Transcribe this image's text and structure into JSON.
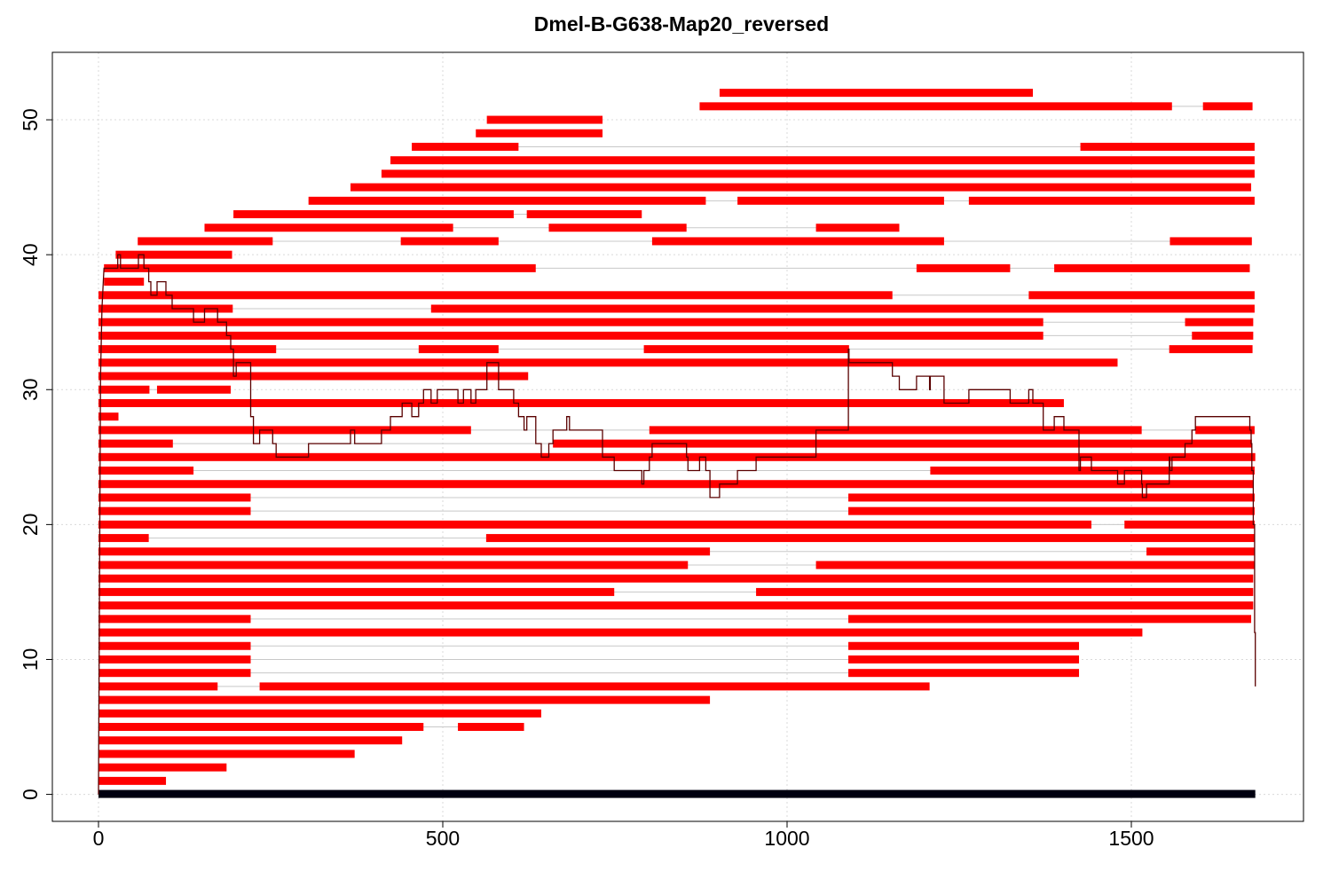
{
  "chart_data": {
    "type": "segment-alignment",
    "title": "Dmel-B-G638-Map20_reversed",
    "xlabel": "",
    "ylabel": "",
    "xlim": [
      -67,
      1750
    ],
    "ylim": [
      -2,
      55
    ],
    "x_ticks": [
      0,
      500,
      1000,
      1500
    ],
    "y_ticks": [
      0,
      10,
      20,
      30,
      40,
      50
    ],
    "grid": true,
    "colors": {
      "segment": "#ff0000",
      "connector": "#c8c8c8",
      "reference": "#000010",
      "coverage": "#5a0000",
      "grid": "#d9d9d9",
      "axis": "#000000"
    },
    "reference_bar": {
      "y": 0,
      "x": [
        0,
        1680
      ]
    },
    "rows": [
      {
        "y": 1,
        "segments": [
          [
            0,
            98
          ]
        ]
      },
      {
        "y": 2,
        "segments": [
          [
            0,
            186
          ]
        ]
      },
      {
        "y": 3,
        "segments": [
          [
            0,
            372
          ]
        ]
      },
      {
        "y": 4,
        "segments": [
          [
            0,
            441
          ]
        ]
      },
      {
        "y": 5,
        "segments": [
          [
            0,
            472
          ],
          [
            522,
            618
          ]
        ]
      },
      {
        "y": 6,
        "segments": [
          [
            0,
            643
          ]
        ]
      },
      {
        "y": 7,
        "segments": [
          [
            0,
            888
          ]
        ]
      },
      {
        "y": 8,
        "segments": [
          [
            0,
            173
          ],
          [
            234,
            1207
          ]
        ]
      },
      {
        "y": 9,
        "segments": [
          [
            0,
            221
          ],
          [
            1089,
            1424
          ]
        ]
      },
      {
        "y": 10,
        "segments": [
          [
            0,
            221
          ],
          [
            1089,
            1424
          ]
        ]
      },
      {
        "y": 11,
        "segments": [
          [
            0,
            221
          ],
          [
            1089,
            1424
          ]
        ]
      },
      {
        "y": 12,
        "segments": [
          [
            0,
            1516
          ]
        ]
      },
      {
        "y": 13,
        "segments": [
          [
            0,
            221
          ],
          [
            1089,
            1674
          ]
        ]
      },
      {
        "y": 14,
        "segments": [
          [
            0,
            1677
          ]
        ]
      },
      {
        "y": 15,
        "segments": [
          [
            0,
            749
          ],
          [
            955,
            1677
          ]
        ]
      },
      {
        "y": 16,
        "segments": [
          [
            0,
            1677
          ]
        ]
      },
      {
        "y": 17,
        "segments": [
          [
            0,
            856
          ],
          [
            1042,
            1679
          ]
        ]
      },
      {
        "y": 18,
        "segments": [
          [
            0,
            888
          ],
          [
            1522,
            1679
          ]
        ]
      },
      {
        "y": 19,
        "segments": [
          [
            0,
            73
          ],
          [
            563,
            1679
          ]
        ]
      },
      {
        "y": 20,
        "segments": [
          [
            0,
            1442
          ],
          [
            1490,
            1679
          ]
        ]
      },
      {
        "y": 21,
        "segments": [
          [
            0,
            221
          ],
          [
            1089,
            1679
          ]
        ]
      },
      {
        "y": 22,
        "segments": [
          [
            0,
            221
          ],
          [
            1089,
            1679
          ]
        ]
      },
      {
        "y": 23,
        "segments": [
          [
            0,
            1677
          ]
        ]
      },
      {
        "y": 24,
        "segments": [
          [
            0,
            138
          ],
          [
            1208,
            1679
          ]
        ]
      },
      {
        "y": 25,
        "segments": [
          [
            0,
            1680
          ]
        ]
      },
      {
        "y": 26,
        "segments": [
          [
            0,
            108
          ],
          [
            660,
            1675
          ]
        ]
      },
      {
        "y": 27,
        "segments": [
          [
            0,
            541
          ],
          [
            800,
            1515
          ],
          [
            1593,
            1679
          ]
        ]
      },
      {
        "y": 28,
        "segments": [
          [
            0,
            29
          ]
        ]
      },
      {
        "y": 29,
        "segments": [
          [
            0,
            1402
          ]
        ]
      },
      {
        "y": 30,
        "segments": [
          [
            0,
            74
          ],
          [
            85,
            192
          ]
        ]
      },
      {
        "y": 31,
        "segments": [
          [
            0,
            624
          ]
        ]
      },
      {
        "y": 32,
        "segments": [
          [
            0,
            1480
          ]
        ]
      },
      {
        "y": 33,
        "segments": [
          [
            0,
            258
          ],
          [
            465,
            581
          ],
          [
            792,
            1090
          ],
          [
            1555,
            1676
          ]
        ]
      },
      {
        "y": 34,
        "segments": [
          [
            0,
            1372
          ],
          [
            1588,
            1677
          ]
        ]
      },
      {
        "y": 35,
        "segments": [
          [
            0,
            1372
          ],
          [
            1578,
            1677
          ]
        ]
      },
      {
        "y": 36,
        "segments": [
          [
            0,
            195
          ],
          [
            483,
            1679
          ]
        ]
      },
      {
        "y": 37,
        "segments": [
          [
            0,
            1153
          ],
          [
            1351,
            1679
          ]
        ]
      },
      {
        "y": 38,
        "segments": [
          [
            8,
            66
          ]
        ]
      },
      {
        "y": 39,
        "segments": [
          [
            8,
            635
          ],
          [
            1188,
            1324
          ],
          [
            1388,
            1672
          ]
        ]
      },
      {
        "y": 40,
        "segments": [
          [
            25,
            194
          ]
        ]
      },
      {
        "y": 41,
        "segments": [
          [
            57,
            253
          ],
          [
            439,
            581
          ],
          [
            804,
            1228
          ],
          [
            1556,
            1675
          ]
        ]
      },
      {
        "y": 42,
        "segments": [
          [
            154,
            515
          ],
          [
            654,
            854
          ],
          [
            1042,
            1163
          ]
        ]
      },
      {
        "y": 43,
        "segments": [
          [
            196,
            603
          ],
          [
            622,
            789
          ]
        ]
      },
      {
        "y": 44,
        "segments": [
          [
            305,
            882
          ],
          [
            928,
            1228
          ],
          [
            1264,
            1679
          ]
        ]
      },
      {
        "y": 45,
        "segments": [
          [
            366,
            1674
          ]
        ]
      },
      {
        "y": 46,
        "segments": [
          [
            411,
            1679
          ]
        ]
      },
      {
        "y": 47,
        "segments": [
          [
            424,
            1679
          ]
        ]
      },
      {
        "y": 48,
        "segments": [
          [
            455,
            610
          ],
          [
            1426,
            1679
          ]
        ]
      },
      {
        "y": 49,
        "segments": [
          [
            548,
            732
          ]
        ]
      },
      {
        "y": 50,
        "segments": [
          [
            564,
            732
          ]
        ]
      },
      {
        "y": 51,
        "segments": [
          [
            873,
            1559
          ],
          [
            1604,
            1676
          ]
        ]
      },
      {
        "y": 52,
        "segments": [
          [
            902,
            1357
          ]
        ]
      }
    ],
    "coverage_line": [
      [
        0,
        0
      ],
      [
        3,
        31
      ],
      [
        5,
        36
      ],
      [
        7,
        38
      ],
      [
        8,
        39
      ],
      [
        28,
        39
      ],
      [
        28,
        40
      ],
      [
        32,
        40
      ],
      [
        32,
        39
      ],
      [
        58,
        39
      ],
      [
        58,
        40
      ],
      [
        66,
        40
      ],
      [
        66,
        39
      ],
      [
        73,
        39
      ],
      [
        73,
        38
      ],
      [
        76,
        38
      ],
      [
        76,
        37
      ],
      [
        85,
        37
      ],
      [
        85,
        38
      ],
      [
        98,
        38
      ],
      [
        98,
        37
      ],
      [
        107,
        37
      ],
      [
        107,
        36
      ],
      [
        138,
        36
      ],
      [
        138,
        35
      ],
      [
        154,
        35
      ],
      [
        154,
        36
      ],
      [
        173,
        36
      ],
      [
        173,
        35
      ],
      [
        186,
        35
      ],
      [
        186,
        34
      ],
      [
        192,
        34
      ],
      [
        192,
        33
      ],
      [
        196,
        33
      ],
      [
        196,
        31
      ],
      [
        200,
        31
      ],
      [
        200,
        32
      ],
      [
        221,
        32
      ],
      [
        221,
        28
      ],
      [
        225,
        28
      ],
      [
        225,
        26
      ],
      [
        234,
        26
      ],
      [
        234,
        27
      ],
      [
        253,
        27
      ],
      [
        253,
        26
      ],
      [
        258,
        26
      ],
      [
        258,
        25
      ],
      [
        305,
        25
      ],
      [
        305,
        26
      ],
      [
        366,
        26
      ],
      [
        366,
        27
      ],
      [
        372,
        27
      ],
      [
        372,
        26
      ],
      [
        411,
        26
      ],
      [
        411,
        27
      ],
      [
        424,
        27
      ],
      [
        424,
        28
      ],
      [
        441,
        28
      ],
      [
        441,
        29
      ],
      [
        455,
        29
      ],
      [
        455,
        28
      ],
      [
        465,
        28
      ],
      [
        465,
        29
      ],
      [
        472,
        29
      ],
      [
        472,
        30
      ],
      [
        483,
        30
      ],
      [
        483,
        29
      ],
      [
        492,
        29
      ],
      [
        492,
        30
      ],
      [
        522,
        30
      ],
      [
        522,
        29
      ],
      [
        530,
        29
      ],
      [
        530,
        30
      ],
      [
        541,
        30
      ],
      [
        541,
        29
      ],
      [
        548,
        29
      ],
      [
        548,
        30
      ],
      [
        564,
        30
      ],
      [
        564,
        32
      ],
      [
        581,
        32
      ],
      [
        581,
        30
      ],
      [
        603,
        30
      ],
      [
        603,
        29
      ],
      [
        610,
        29
      ],
      [
        610,
        28
      ],
      [
        618,
        28
      ],
      [
        618,
        27
      ],
      [
        622,
        27
      ],
      [
        622,
        28
      ],
      [
        635,
        28
      ],
      [
        635,
        26
      ],
      [
        643,
        26
      ],
      [
        643,
        25
      ],
      [
        654,
        25
      ],
      [
        654,
        26
      ],
      [
        660,
        26
      ],
      [
        660,
        27
      ],
      [
        680,
        27
      ],
      [
        680,
        28
      ],
      [
        684,
        28
      ],
      [
        684,
        27
      ],
      [
        732,
        27
      ],
      [
        732,
        25
      ],
      [
        749,
        25
      ],
      [
        749,
        24
      ],
      [
        789,
        24
      ],
      [
        789,
        23
      ],
      [
        792,
        23
      ],
      [
        792,
        24
      ],
      [
        800,
        24
      ],
      [
        800,
        25
      ],
      [
        804,
        25
      ],
      [
        804,
        26
      ],
      [
        854,
        26
      ],
      [
        854,
        25
      ],
      [
        856,
        25
      ],
      [
        856,
        24
      ],
      [
        873,
        24
      ],
      [
        873,
        25
      ],
      [
        882,
        25
      ],
      [
        882,
        24
      ],
      [
        888,
        24
      ],
      [
        888,
        22
      ],
      [
        902,
        22
      ],
      [
        902,
        23
      ],
      [
        928,
        23
      ],
      [
        928,
        24
      ],
      [
        955,
        24
      ],
      [
        955,
        25
      ],
      [
        1042,
        25
      ],
      [
        1042,
        27
      ],
      [
        1089,
        27
      ],
      [
        1089,
        33
      ],
      [
        1090,
        33
      ],
      [
        1090,
        32
      ],
      [
        1153,
        32
      ],
      [
        1153,
        31
      ],
      [
        1163,
        31
      ],
      [
        1163,
        30
      ],
      [
        1188,
        30
      ],
      [
        1188,
        31
      ],
      [
        1207,
        31
      ],
      [
        1207,
        30
      ],
      [
        1208,
        30
      ],
      [
        1208,
        31
      ],
      [
        1228,
        31
      ],
      [
        1228,
        29
      ],
      [
        1264,
        29
      ],
      [
        1264,
        30
      ],
      [
        1324,
        30
      ],
      [
        1324,
        29
      ],
      [
        1351,
        29
      ],
      [
        1351,
        30
      ],
      [
        1357,
        30
      ],
      [
        1357,
        29
      ],
      [
        1372,
        29
      ],
      [
        1372,
        27
      ],
      [
        1388,
        27
      ],
      [
        1388,
        28
      ],
      [
        1402,
        28
      ],
      [
        1402,
        27
      ],
      [
        1424,
        27
      ],
      [
        1424,
        24
      ],
      [
        1426,
        24
      ],
      [
        1426,
        25
      ],
      [
        1442,
        25
      ],
      [
        1442,
        24
      ],
      [
        1480,
        24
      ],
      [
        1480,
        23
      ],
      [
        1490,
        23
      ],
      [
        1490,
        24
      ],
      [
        1515,
        24
      ],
      [
        1515,
        23
      ],
      [
        1516,
        23
      ],
      [
        1516,
        22
      ],
      [
        1522,
        22
      ],
      [
        1522,
        23
      ],
      [
        1555,
        23
      ],
      [
        1555,
        25
      ],
      [
        1556,
        25
      ],
      [
        1556,
        24
      ],
      [
        1559,
        24
      ],
      [
        1559,
        25
      ],
      [
        1578,
        25
      ],
      [
        1578,
        26
      ],
      [
        1588,
        26
      ],
      [
        1588,
        27
      ],
      [
        1593,
        27
      ],
      [
        1593,
        28
      ],
      [
        1672,
        28
      ],
      [
        1672,
        27
      ],
      [
        1674,
        27
      ],
      [
        1674,
        26
      ],
      [
        1675,
        26
      ],
      [
        1675,
        24
      ],
      [
        1677,
        24
      ],
      [
        1677,
        20
      ],
      [
        1679,
        20
      ],
      [
        1679,
        12
      ],
      [
        1680,
        12
      ],
      [
        1680,
        8
      ]
    ]
  }
}
